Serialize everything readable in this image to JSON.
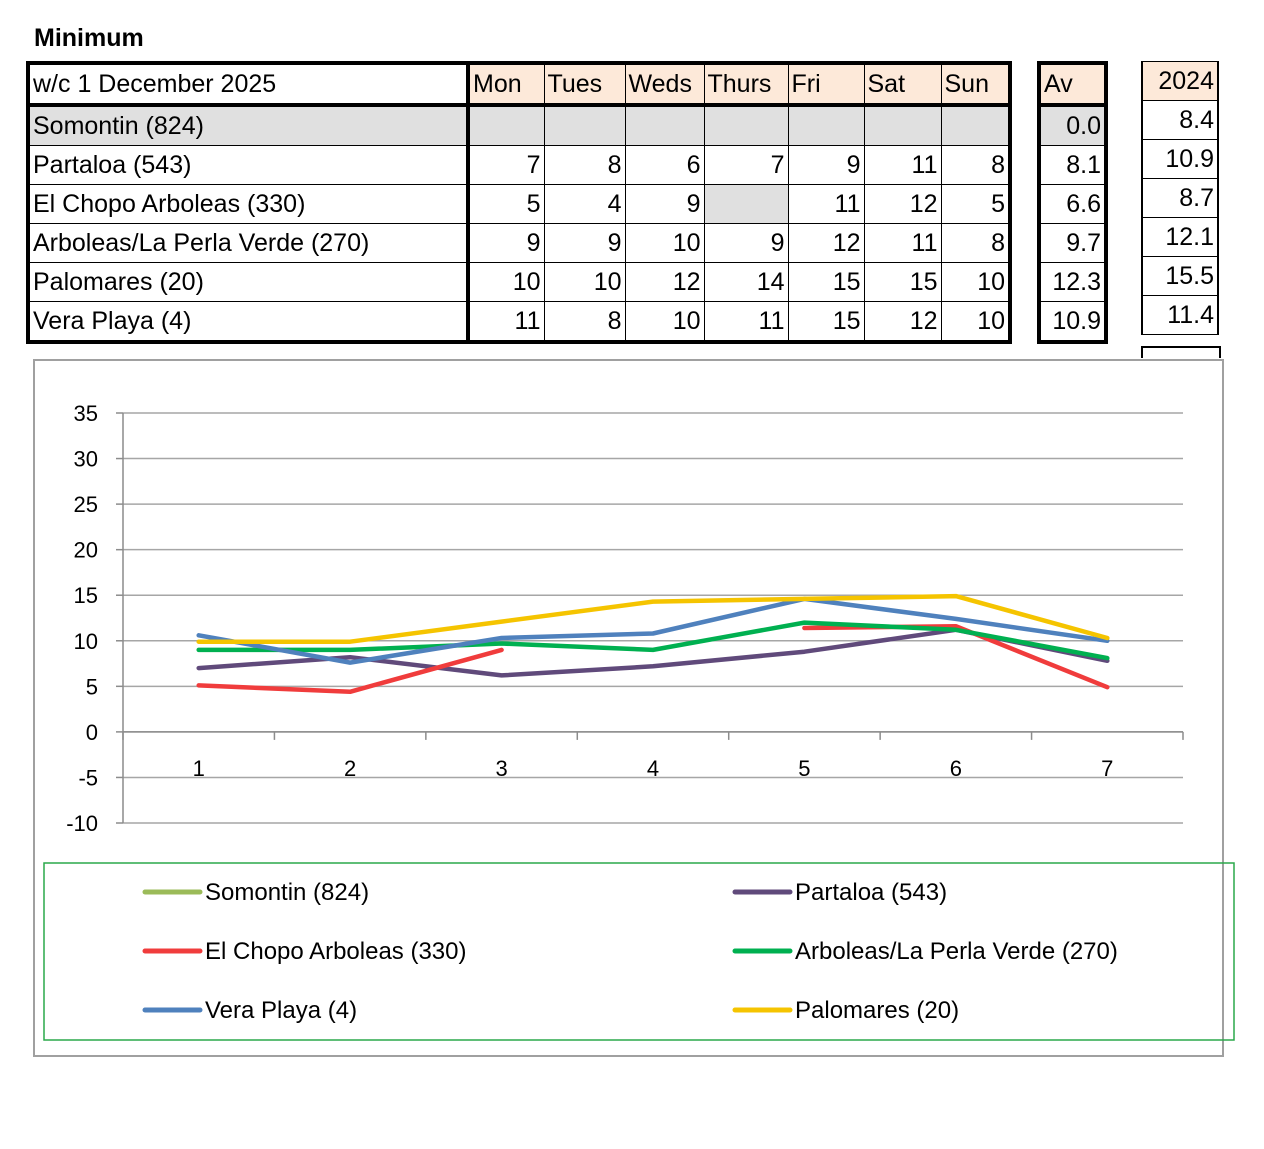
{
  "title": "Minimum",
  "table": {
    "week_label": "w/c 1 December  2025",
    "days": [
      "Mon",
      "Tues",
      "Weds",
      "Thurs",
      "Fri",
      "Sat",
      "Sun"
    ],
    "av_label": "Av",
    "year_label": "2024",
    "rows": [
      {
        "name": "Somontin (824)",
        "values": [
          "",
          "",
          "",
          "",
          "",
          "",
          ""
        ],
        "av": "0.0",
        "y2024": "8.4"
      },
      {
        "name": "Partaloa (543)",
        "values": [
          "7",
          "8",
          "6",
          "7",
          "9",
          "11",
          "8"
        ],
        "av": "8.1",
        "y2024": "10.9"
      },
      {
        "name": "El Chopo Arboleas (330)",
        "values": [
          "5",
          "4",
          "9",
          "",
          "11",
          "12",
          "5"
        ],
        "av": "6.6",
        "y2024": "8.7"
      },
      {
        "name": "Arboleas/La Perla Verde (270)",
        "values": [
          "9",
          "9",
          "10",
          "9",
          "12",
          "11",
          "8"
        ],
        "av": "9.7",
        "y2024": "12.1"
      },
      {
        "name": "Palomares (20)",
        "values": [
          "10",
          "10",
          "12",
          "14",
          "15",
          "15",
          "10"
        ],
        "av": "12.3",
        "y2024": "15.5"
      },
      {
        "name": "Vera Playa (4)",
        "values": [
          "11",
          "8",
          "10",
          "11",
          "15",
          "12",
          "10"
        ],
        "av": "10.9",
        "y2024": "11.4"
      }
    ]
  },
  "chart_data": {
    "type": "line",
    "title": "",
    "xlabel": "",
    "ylabel": "",
    "x": [
      1,
      2,
      3,
      4,
      5,
      6,
      7
    ],
    "x_tick_labels": [
      "1",
      "2",
      "3",
      "4",
      "5",
      "6",
      "7"
    ],
    "ylim": [
      -10,
      35
    ],
    "y_ticks": [
      35,
      30,
      25,
      20,
      15,
      10,
      5,
      0,
      -5,
      -10
    ],
    "grid": true,
    "legend_position": "bottom",
    "series": [
      {
        "name": "Somontin (824)",
        "color": "#9bbb59",
        "values": [
          null,
          null,
          null,
          null,
          null,
          null,
          null
        ]
      },
      {
        "name": "Partaloa (543)",
        "color": "#604a7b",
        "values": [
          7,
          8.2,
          6.2,
          7.2,
          8.8,
          11.2,
          7.8
        ]
      },
      {
        "name": "El Chopo Arboleas (330)",
        "color": "#f03c3c",
        "values": [
          5.1,
          4.4,
          9,
          null,
          11.4,
          11.6,
          4.9
        ]
      },
      {
        "name": "Arboleas/La Perla Verde (270)",
        "color": "#00b050",
        "values": [
          9,
          9,
          9.7,
          9,
          12,
          11.2,
          8.1
        ]
      },
      {
        "name": "Vera Playa (4)",
        "color": "#4f81bd",
        "values": [
          10.6,
          7.6,
          10.3,
          10.8,
          14.6,
          12.4,
          10
        ]
      },
      {
        "name": "Palomares (20)",
        "color": "#f5c400",
        "values": [
          9.9,
          9.9,
          12.1,
          14.3,
          14.6,
          14.9,
          10.3
        ]
      }
    ],
    "legend_order": [
      0,
      1,
      2,
      3,
      4,
      5
    ]
  }
}
